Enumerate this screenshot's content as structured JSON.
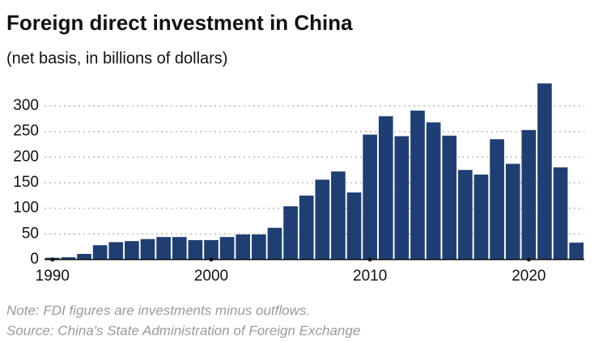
{
  "chart_data": {
    "type": "bar",
    "title": "Foreign direct investment in China",
    "subtitle": "(net basis, in billions of dollars)",
    "note": "Note: FDI figures are investments minus outflows.",
    "source": "Source: China's State Administration of Foreign Exchange",
    "x": [
      1990,
      1991,
      1992,
      1993,
      1994,
      1995,
      1996,
      1997,
      1998,
      1999,
      2000,
      2001,
      2002,
      2003,
      2004,
      2005,
      2006,
      2007,
      2008,
      2009,
      2010,
      2011,
      2012,
      2013,
      2014,
      2015,
      2016,
      2017,
      2018,
      2019,
      2020,
      2021,
      2022,
      2023
    ],
    "values": [
      3.5,
      4.4,
      11,
      28,
      34,
      36,
      40,
      44,
      44,
      38,
      38,
      44,
      49,
      49,
      62,
      104,
      125,
      156,
      172,
      131,
      244,
      280,
      241,
      291,
      268,
      242,
      175,
      166,
      235,
      187,
      253,
      344,
      180,
      33
    ],
    "color": "#1f3f73",
    "xlim": [
      1989.5,
      2023.5
    ],
    "xticks": [
      1990,
      2000,
      2010,
      2020
    ],
    "ylim": [
      0,
      350
    ],
    "yticks": [
      0,
      50,
      100,
      150,
      200,
      250,
      300
    ],
    "grid": true
  }
}
